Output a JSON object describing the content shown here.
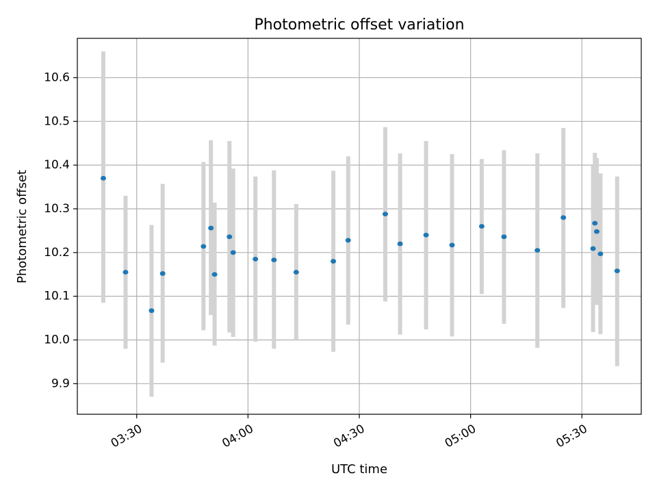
{
  "chart_data": {
    "type": "scatter",
    "title": "Photometric offset variation",
    "xlabel": "UTC time",
    "ylabel": "Photometric offset",
    "x_is_time": true,
    "xlim": [
      "03:14",
      "05:46"
    ],
    "ylim": [
      9.83,
      10.69
    ],
    "x_ticks": [
      "03:30",
      "04:00",
      "04:30",
      "05:00",
      "05:30"
    ],
    "y_ticks": [
      "9.9",
      "10.0",
      "10.1",
      "10.2",
      "10.3",
      "10.4",
      "10.5",
      "10.6"
    ],
    "grid": true,
    "colors": {
      "points": "#1f77b4",
      "errorbars": "#d3d3d3",
      "grid": "#b0b0b0"
    },
    "series": [
      {
        "points": [
          {
            "x": "03:21",
            "y": 10.37,
            "err_low": 10.085,
            "err_high": 10.66
          },
          {
            "x": "03:27",
            "y": 10.155,
            "err_low": 9.98,
            "err_high": 10.33
          },
          {
            "x": "03:34",
            "y": 10.067,
            "err_low": 9.87,
            "err_high": 10.263
          },
          {
            "x": "03:37",
            "y": 10.152,
            "err_low": 9.948,
            "err_high": 10.357
          },
          {
            "x": "03:48",
            "y": 10.214,
            "err_low": 10.022,
            "err_high": 10.407
          },
          {
            "x": "03:50",
            "y": 10.256,
            "err_low": 10.057,
            "err_high": 10.457
          },
          {
            "x": "03:51",
            "y": 10.15,
            "err_low": 9.987,
            "err_high": 10.314
          },
          {
            "x": "03:55",
            "y": 10.236,
            "err_low": 10.017,
            "err_high": 10.455
          },
          {
            "x": "03:56",
            "y": 10.2,
            "err_low": 10.007,
            "err_high": 10.392
          },
          {
            "x": "04:02",
            "y": 10.185,
            "err_low": 9.996,
            "err_high": 10.374
          },
          {
            "x": "04:07",
            "y": 10.183,
            "err_low": 9.98,
            "err_high": 10.388
          },
          {
            "x": "04:13",
            "y": 10.155,
            "err_low": 10.0,
            "err_high": 10.311
          },
          {
            "x": "04:23",
            "y": 10.18,
            "err_low": 9.973,
            "err_high": 10.387
          },
          {
            "x": "04:27",
            "y": 10.228,
            "err_low": 10.035,
            "err_high": 10.42
          },
          {
            "x": "04:37",
            "y": 10.288,
            "err_low": 10.088,
            "err_high": 10.487
          },
          {
            "x": "04:41",
            "y": 10.22,
            "err_low": 10.012,
            "err_high": 10.427
          },
          {
            "x": "04:48",
            "y": 10.24,
            "err_low": 10.024,
            "err_high": 10.455
          },
          {
            "x": "04:55",
            "y": 10.217,
            "err_low": 10.008,
            "err_high": 10.425
          },
          {
            "x": "05:03",
            "y": 10.26,
            "err_low": 10.105,
            "err_high": 10.414
          },
          {
            "x": "05:09",
            "y": 10.236,
            "err_low": 10.037,
            "err_high": 10.434
          },
          {
            "x": "05:18",
            "y": 10.205,
            "err_low": 9.982,
            "err_high": 10.427
          },
          {
            "x": "05:25",
            "y": 10.28,
            "err_low": 10.073,
            "err_high": 10.485
          },
          {
            "x": "05:33",
            "y": 10.209,
            "err_low": 10.018,
            "err_high": 10.399
          },
          {
            "x": "05:33.5",
            "y": 10.267,
            "err_low": 10.107,
            "err_high": 10.428
          },
          {
            "x": "05:34",
            "y": 10.248,
            "err_low": 10.08,
            "err_high": 10.416
          },
          {
            "x": "05:35",
            "y": 10.197,
            "err_low": 10.013,
            "err_high": 10.381
          },
          {
            "x": "05:39.5",
            "y": 10.158,
            "err_low": 9.94,
            "err_high": 10.374
          }
        ]
      }
    ]
  }
}
